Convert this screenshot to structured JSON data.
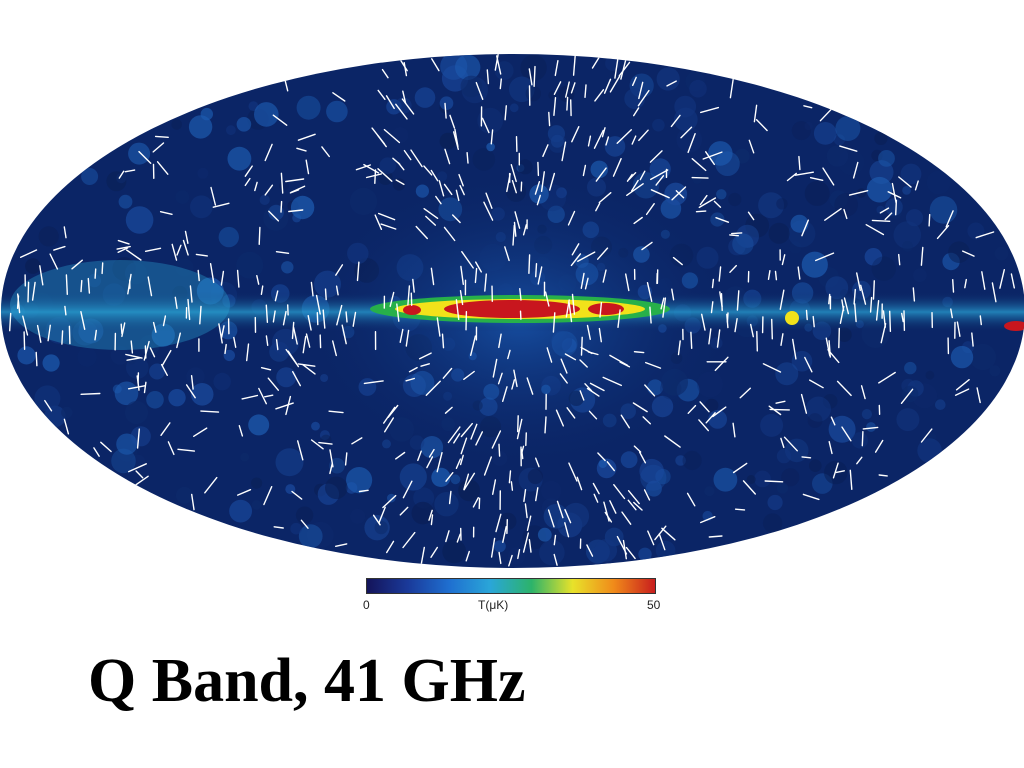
{
  "map": {
    "projection": "Mollweide all-sky",
    "overlay": "polarization vectors (white)",
    "colors": {
      "background": "#0b2566",
      "band_red": "#c8161e",
      "band_yellow": "#f2e21a",
      "band_green": "#27b04a",
      "band_cyan": "#2ea7d6",
      "vectors": "#ffffff"
    }
  },
  "colorbar": {
    "min_label": "0",
    "unit_label": "T(μK)",
    "max_label": "50",
    "min": 0,
    "max": 50,
    "stops": [
      "#14145a",
      "#1a3a9a",
      "#1f6fd0",
      "#2aa6d8",
      "#2cb36a",
      "#e8e22a",
      "#f08a1a",
      "#c81e1e"
    ]
  },
  "title": "Q Band, 41 GHz"
}
